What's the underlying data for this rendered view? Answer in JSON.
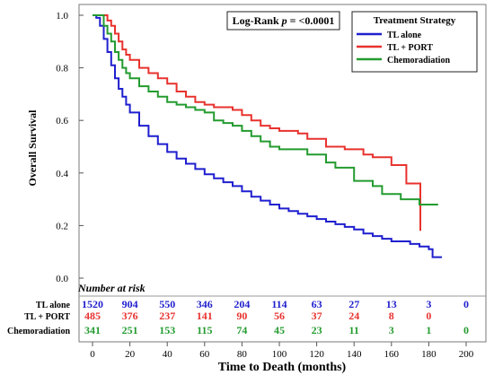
{
  "chart_data": {
    "type": "line",
    "title": "",
    "xlabel": "Time to Death (months)",
    "ylabel": "Overall Survival",
    "xlim": [
      0,
      200
    ],
    "ylim": [
      0.0,
      1.0
    ],
    "x_ticks": [
      0,
      20,
      40,
      60,
      80,
      100,
      120,
      140,
      160,
      180,
      200
    ],
    "y_ticks": [
      0.0,
      0.2,
      0.4,
      0.6,
      0.8,
      1.0
    ],
    "y_tick_labels": [
      "0.0",
      "0.2",
      "0.4",
      "0.6",
      "0.8",
      "1.0"
    ],
    "grid": false,
    "legend": {
      "title": "Treatment Strategy",
      "position": "top-right"
    },
    "annotation": {
      "prefix": "Log-Rank ",
      "italic": "p",
      "suffix": " = <0.0001"
    },
    "series": [
      {
        "name": "TL alone",
        "color": "#1f1fcf",
        "points": [
          [
            0,
            1.0
          ],
          [
            2,
            0.99
          ],
          [
            4,
            0.96
          ],
          [
            6,
            0.91
          ],
          [
            8,
            0.86
          ],
          [
            10,
            0.81
          ],
          [
            12,
            0.76
          ],
          [
            14,
            0.72
          ],
          [
            16,
            0.69
          ],
          [
            18,
            0.66
          ],
          [
            20,
            0.63
          ],
          [
            25,
            0.58
          ],
          [
            30,
            0.54
          ],
          [
            35,
            0.51
          ],
          [
            40,
            0.48
          ],
          [
            45,
            0.455
          ],
          [
            50,
            0.435
          ],
          [
            55,
            0.415
          ],
          [
            60,
            0.395
          ],
          [
            65,
            0.38
          ],
          [
            70,
            0.365
          ],
          [
            75,
            0.35
          ],
          [
            80,
            0.33
          ],
          [
            85,
            0.31
          ],
          [
            90,
            0.295
          ],
          [
            95,
            0.28
          ],
          [
            100,
            0.265
          ],
          [
            105,
            0.255
          ],
          [
            110,
            0.245
          ],
          [
            115,
            0.235
          ],
          [
            120,
            0.225
          ],
          [
            125,
            0.215
          ],
          [
            130,
            0.205
          ],
          [
            135,
            0.195
          ],
          [
            140,
            0.185
          ],
          [
            145,
            0.17
          ],
          [
            150,
            0.16
          ],
          [
            155,
            0.15
          ],
          [
            160,
            0.14
          ],
          [
            165,
            0.14
          ],
          [
            170,
            0.13
          ],
          [
            175,
            0.12
          ],
          [
            180,
            0.11
          ],
          [
            182,
            0.08
          ],
          [
            187,
            0.08
          ]
        ]
      },
      {
        "name": "TL + PORT",
        "color": "#e8322e",
        "points": [
          [
            0,
            1.0
          ],
          [
            5,
            1.0
          ],
          [
            8,
            0.98
          ],
          [
            10,
            0.96
          ],
          [
            12,
            0.93
          ],
          [
            14,
            0.9
          ],
          [
            16,
            0.87
          ],
          [
            18,
            0.85
          ],
          [
            20,
            0.83
          ],
          [
            25,
            0.8
          ],
          [
            30,
            0.78
          ],
          [
            35,
            0.76
          ],
          [
            40,
            0.74
          ],
          [
            45,
            0.71
          ],
          [
            50,
            0.69
          ],
          [
            55,
            0.67
          ],
          [
            60,
            0.66
          ],
          [
            65,
            0.65
          ],
          [
            70,
            0.65
          ],
          [
            75,
            0.64
          ],
          [
            80,
            0.62
          ],
          [
            85,
            0.6
          ],
          [
            90,
            0.58
          ],
          [
            95,
            0.57
          ],
          [
            100,
            0.56
          ],
          [
            110,
            0.55
          ],
          [
            115,
            0.53
          ],
          [
            120,
            0.53
          ],
          [
            125,
            0.5
          ],
          [
            135,
            0.49
          ],
          [
            140,
            0.49
          ],
          [
            145,
            0.47
          ],
          [
            150,
            0.46
          ],
          [
            155,
            0.46
          ],
          [
            160,
            0.43
          ],
          [
            165,
            0.43
          ],
          [
            168,
            0.36
          ],
          [
            172,
            0.36
          ],
          [
            175,
            0.36
          ],
          [
            175.5,
            0.18
          ]
        ]
      },
      {
        "name": "Chemoradiation",
        "color": "#239b2f",
        "points": [
          [
            0,
            1.0
          ],
          [
            4,
            1.0
          ],
          [
            6,
            0.96
          ],
          [
            8,
            0.93
          ],
          [
            10,
            0.9
          ],
          [
            12,
            0.86
          ],
          [
            14,
            0.83
          ],
          [
            16,
            0.8
          ],
          [
            18,
            0.78
          ],
          [
            20,
            0.76
          ],
          [
            25,
            0.73
          ],
          [
            30,
            0.71
          ],
          [
            35,
            0.69
          ],
          [
            40,
            0.67
          ],
          [
            45,
            0.66
          ],
          [
            50,
            0.65
          ],
          [
            55,
            0.64
          ],
          [
            60,
            0.63
          ],
          [
            65,
            0.6
          ],
          [
            70,
            0.59
          ],
          [
            75,
            0.58
          ],
          [
            80,
            0.56
          ],
          [
            85,
            0.54
          ],
          [
            90,
            0.52
          ],
          [
            95,
            0.5
          ],
          [
            100,
            0.49
          ],
          [
            110,
            0.49
          ],
          [
            115,
            0.47
          ],
          [
            120,
            0.47
          ],
          [
            125,
            0.44
          ],
          [
            130,
            0.42
          ],
          [
            135,
            0.42
          ],
          [
            140,
            0.37
          ],
          [
            145,
            0.37
          ],
          [
            150,
            0.35
          ],
          [
            155,
            0.32
          ],
          [
            160,
            0.32
          ],
          [
            165,
            0.3
          ],
          [
            170,
            0.3
          ],
          [
            175,
            0.28
          ],
          [
            180,
            0.28
          ],
          [
            185,
            0.28
          ]
        ]
      }
    ],
    "risk_table": {
      "title": "Number at risk",
      "times": [
        0,
        20,
        40,
        60,
        80,
        100,
        120,
        140,
        160,
        180,
        200
      ],
      "rows": [
        {
          "label": "TL alone",
          "color": "#1f1fcf",
          "values": [
            "1520",
            "904",
            "550",
            "346",
            "204",
            "114",
            "63",
            "27",
            "13",
            "3",
            "0"
          ]
        },
        {
          "label": "TL + PORT",
          "color": "#e8322e",
          "values": [
            "485",
            "376",
            "237",
            "141",
            "90",
            "56",
            "37",
            "24",
            "8",
            "0",
            ""
          ]
        },
        {
          "label": "Chemoradiation",
          "color": "#239b2f",
          "values": [
            "341",
            "251",
            "153",
            "115",
            "74",
            "45",
            "23",
            "11",
            "3",
            "1",
            "0"
          ]
        }
      ]
    }
  }
}
